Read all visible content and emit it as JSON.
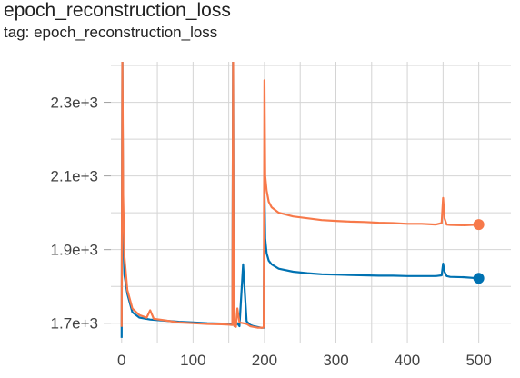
{
  "header": {
    "title": "epoch_reconstruction_loss",
    "tag": "tag: epoch_reconstruction_loss"
  },
  "chart_data": {
    "type": "line",
    "title": "epoch_reconstruction_loss",
    "xlabel": "",
    "ylabel": "",
    "xlim": [
      -15,
      545
    ],
    "ylim": [
      1645,
      2410
    ],
    "x_ticks": [
      0,
      100,
      200,
      300,
      400,
      500
    ],
    "x_tick_labels": [
      "0",
      "100",
      "200",
      "300",
      "400",
      "500"
    ],
    "y_ticks": [
      1700,
      1900,
      2100,
      2300
    ],
    "y_tick_labels": [
      "1.7e+3",
      "1.9e+3",
      "2.1e+3",
      "2.3e+3"
    ],
    "grid": true,
    "legend": "none",
    "series": [
      {
        "color": "#0072b2",
        "x": [
          0,
          1,
          2,
          4,
          8,
          15,
          25,
          40,
          60,
          80,
          100,
          120,
          140,
          150,
          155,
          156,
          157,
          158,
          159,
          160,
          162,
          165,
          170,
          175,
          180,
          185,
          190,
          195,
          198,
          199,
          200,
          201,
          203,
          206,
          210,
          220,
          240,
          260,
          280,
          300,
          320,
          340,
          360,
          380,
          400,
          420,
          440,
          448,
          450,
          452,
          455,
          460,
          480,
          500
        ],
        "y": [
          1660,
          2420,
          1950,
          1830,
          1780,
          1730,
          1715,
          1710,
          1707,
          1704,
          1702,
          1700,
          1699,
          1698,
          1697,
          2430,
          1700,
          1692,
          1698,
          1695,
          1700,
          1692,
          1860,
          1705,
          1695,
          1692,
          1690,
          1688,
          1688,
          1688,
          2060,
          1930,
          1890,
          1870,
          1860,
          1848,
          1840,
          1836,
          1833,
          1832,
          1831,
          1830,
          1829,
          1829,
          1828,
          1828,
          1828,
          1830,
          1862,
          1840,
          1828,
          1826,
          1825,
          1822
        ]
      },
      {
        "color": "#f7794a",
        "x": [
          0,
          1,
          2,
          4,
          8,
          15,
          25,
          35,
          40,
          45,
          60,
          80,
          100,
          120,
          140,
          150,
          155,
          156,
          157,
          158,
          159,
          160,
          162,
          165,
          170,
          175,
          180,
          185,
          190,
          195,
          198,
          199,
          200,
          201,
          203,
          206,
          210,
          220,
          240,
          260,
          280,
          300,
          320,
          340,
          360,
          380,
          400,
          420,
          440,
          448,
          450,
          452,
          455,
          460,
          480,
          500
        ],
        "y": [
          1690,
          2420,
          2050,
          1880,
          1790,
          1740,
          1722,
          1715,
          1735,
          1712,
          1708,
          1702,
          1700,
          1698,
          1697,
          1696,
          1695,
          2410,
          1700,
          1692,
          1698,
          1690,
          1740,
          1702,
          1700,
          1698,
          1692,
          1690,
          1688,
          1688,
          1688,
          1690,
          2360,
          2100,
          2060,
          2030,
          2015,
          2000,
          1990,
          1985,
          1980,
          1978,
          1976,
          1975,
          1973,
          1972,
          1970,
          1970,
          1968,
          1972,
          2040,
          1985,
          1968,
          1967,
          1966,
          1968
        ]
      }
    ]
  }
}
